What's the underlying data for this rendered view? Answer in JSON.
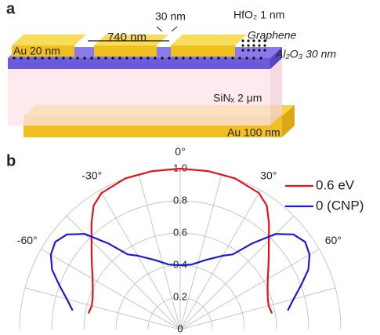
{
  "panel_a": {
    "label": "a",
    "hfo2": "HfO₂ 1 nm",
    "gap": "30 nm",
    "period": "740 nm",
    "graphene": "Graphene",
    "au_top": "Au 20 nm",
    "al2o3": "Al₂O₃ 30 nm",
    "sinx": "SiNₓ 2 μm",
    "au_bottom": "Au 100 nm"
  },
  "chart_data": {
    "type": "polar",
    "label": "b",
    "theta": [
      -80,
      -75,
      -70,
      -65,
      -60,
      -55,
      -50,
      -45,
      -40,
      -35,
      -30,
      -20,
      -10,
      0,
      10,
      20,
      30,
      35,
      40,
      45,
      50,
      55,
      60,
      65,
      70,
      75,
      80
    ],
    "series": [
      {
        "name": "0.6 eV",
        "color": "#e0141b",
        "values": [
          0.58,
          0.57,
          0.58,
          0.6,
          0.63,
          0.67,
          0.72,
          0.78,
          0.86,
          0.94,
          0.98,
          1.0,
          1.0,
          1.0,
          1.0,
          1.0,
          0.98,
          0.94,
          0.86,
          0.78,
          0.72,
          0.67,
          0.63,
          0.6,
          0.58,
          0.57,
          0.58
        ]
      },
      {
        "name": "0 (CNP)",
        "color": "#1a1ad6",
        "values": [
          0.68,
          0.73,
          0.8,
          0.88,
          0.93,
          0.95,
          0.92,
          0.84,
          0.7,
          0.57,
          0.53,
          0.46,
          0.41,
          0.4,
          0.41,
          0.46,
          0.53,
          0.57,
          0.7,
          0.84,
          0.92,
          0.95,
          0.93,
          0.88,
          0.8,
          0.73,
          0.68
        ]
      }
    ],
    "thetalim": [
      -90,
      90
    ],
    "thetaticks": [
      {
        "value": -75,
        "label": null
      },
      {
        "value": -60,
        "label": "-60°"
      },
      {
        "value": -45,
        "label": null
      },
      {
        "value": -30,
        "label": "-30°"
      },
      {
        "value": -15,
        "label": null
      },
      {
        "value": 0,
        "label": "0°"
      },
      {
        "value": 15,
        "label": null
      },
      {
        "value": 30,
        "label": "30°"
      },
      {
        "value": 45,
        "label": null
      },
      {
        "value": 60,
        "label": "60°"
      },
      {
        "value": 75,
        "label": null
      }
    ],
    "rlim": [
      0,
      1
    ],
    "rticks": [
      0,
      0.2,
      0.4,
      0.6,
      0.8,
      {
        "value": 1,
        "label": "1.0"
      }
    ],
    "grid": true,
    "legend": "upper right"
  }
}
